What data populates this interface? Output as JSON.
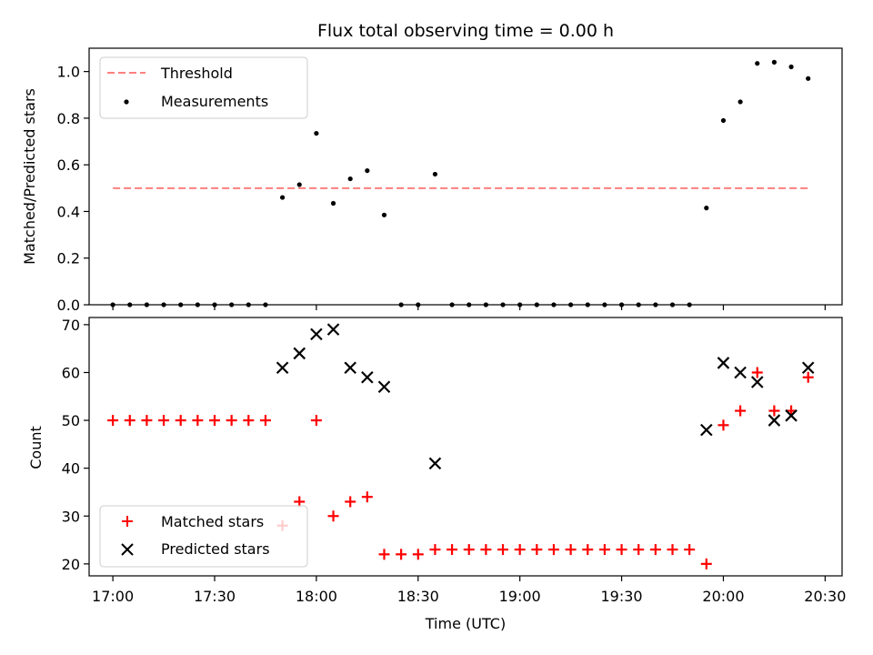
{
  "chart_data": [
    {
      "type": "scatter",
      "title": "Flux total observing time = 0.00 h",
      "xlabel": "",
      "ylabel": "Matched/Predicted stars",
      "ylim": [
        0,
        1.1
      ],
      "yticks": [
        "0.0",
        "0.2",
        "0.4",
        "0.6",
        "0.8",
        "1.0"
      ],
      "ytick_values": [
        0,
        0.2,
        0.4,
        0.6,
        0.8,
        1.0
      ],
      "legend_position": "top-left",
      "threshold": {
        "name": "Threshold",
        "y": 0.5,
        "x_start": "17:00",
        "x_end": "20:25",
        "color": "#ff7f7f"
      },
      "series": [
        {
          "name": "Measurements",
          "color": "#000000",
          "x": [
            "17:00",
            "17:05",
            "17:10",
            "17:15",
            "17:20",
            "17:25",
            "17:30",
            "17:35",
            "17:40",
            "17:45",
            "17:50",
            "17:55",
            "18:00",
            "18:05",
            "18:10",
            "18:15",
            "18:20",
            "18:25",
            "18:30",
            "18:35",
            "18:40",
            "18:45",
            "18:50",
            "18:55",
            "19:00",
            "19:05",
            "19:10",
            "19:15",
            "19:20",
            "19:25",
            "19:30",
            "19:35",
            "19:40",
            "19:45",
            "19:50",
            "19:55",
            "20:00",
            "20:05",
            "20:10",
            "20:15",
            "20:20",
            "20:25"
          ],
          "y": [
            0,
            0,
            0,
            0,
            0,
            0,
            0,
            0,
            0,
            0,
            0.46,
            0.515,
            0.735,
            0.435,
            0.54,
            0.575,
            0.385,
            0,
            0,
            0.56,
            0,
            0,
            0,
            0,
            0,
            0,
            0,
            0,
            0,
            0,
            0,
            0,
            0,
            0,
            0,
            0.415,
            0.79,
            0.87,
            1.035,
            1.04,
            1.02,
            0.97
          ]
        }
      ]
    },
    {
      "type": "scatter",
      "title": "",
      "xlabel": "Time (UTC)",
      "ylabel": "Count",
      "xlim": [
        "16:53",
        "20:35"
      ],
      "xticks": [
        "17:00",
        "17:30",
        "18:00",
        "18:30",
        "19:00",
        "19:30",
        "20:00",
        "20:30"
      ],
      "ylim": [
        17.5,
        71.5
      ],
      "yticks": [
        "20",
        "30",
        "40",
        "50",
        "60",
        "70"
      ],
      "ytick_values": [
        20,
        30,
        40,
        50,
        60,
        70
      ],
      "legend_position": "bottom-left",
      "series": [
        {
          "name": "Matched stars",
          "marker": "plus",
          "color": "#ff0000",
          "x": [
            "17:00",
            "17:05",
            "17:10",
            "17:15",
            "17:20",
            "17:25",
            "17:30",
            "17:35",
            "17:40",
            "17:45",
            "17:50",
            "17:55",
            "18:00",
            "18:05",
            "18:10",
            "18:15",
            "18:20",
            "18:25",
            "18:30",
            "18:35",
            "18:40",
            "18:45",
            "18:50",
            "18:55",
            "19:00",
            "19:05",
            "19:10",
            "19:15",
            "19:20",
            "19:25",
            "19:30",
            "19:35",
            "19:40",
            "19:45",
            "19:50",
            "19:55",
            "20:00",
            "20:05",
            "20:10",
            "20:15",
            "20:20",
            "20:25"
          ],
          "y": [
            50,
            50,
            50,
            50,
            50,
            50,
            50,
            50,
            50,
            50,
            28,
            33,
            50,
            30,
            33,
            34,
            22,
            22,
            22,
            23,
            23,
            23,
            23,
            23,
            23,
            23,
            23,
            23,
            23,
            23,
            23,
            23,
            23,
            23,
            23,
            20,
            49,
            52,
            60,
            52,
            52,
            59
          ]
        },
        {
          "name": "Predicted stars",
          "marker": "x",
          "color": "#000000",
          "x": [
            "17:50",
            "17:55",
            "18:00",
            "18:05",
            "18:10",
            "18:15",
            "18:20",
            "18:35",
            "19:55",
            "20:00",
            "20:05",
            "20:10",
            "20:15",
            "20:20",
            "20:25"
          ],
          "y": [
            61,
            64,
            68,
            69,
            61,
            59,
            57,
            41,
            48,
            62,
            60,
            58,
            50,
            51,
            61
          ]
        }
      ]
    }
  ]
}
